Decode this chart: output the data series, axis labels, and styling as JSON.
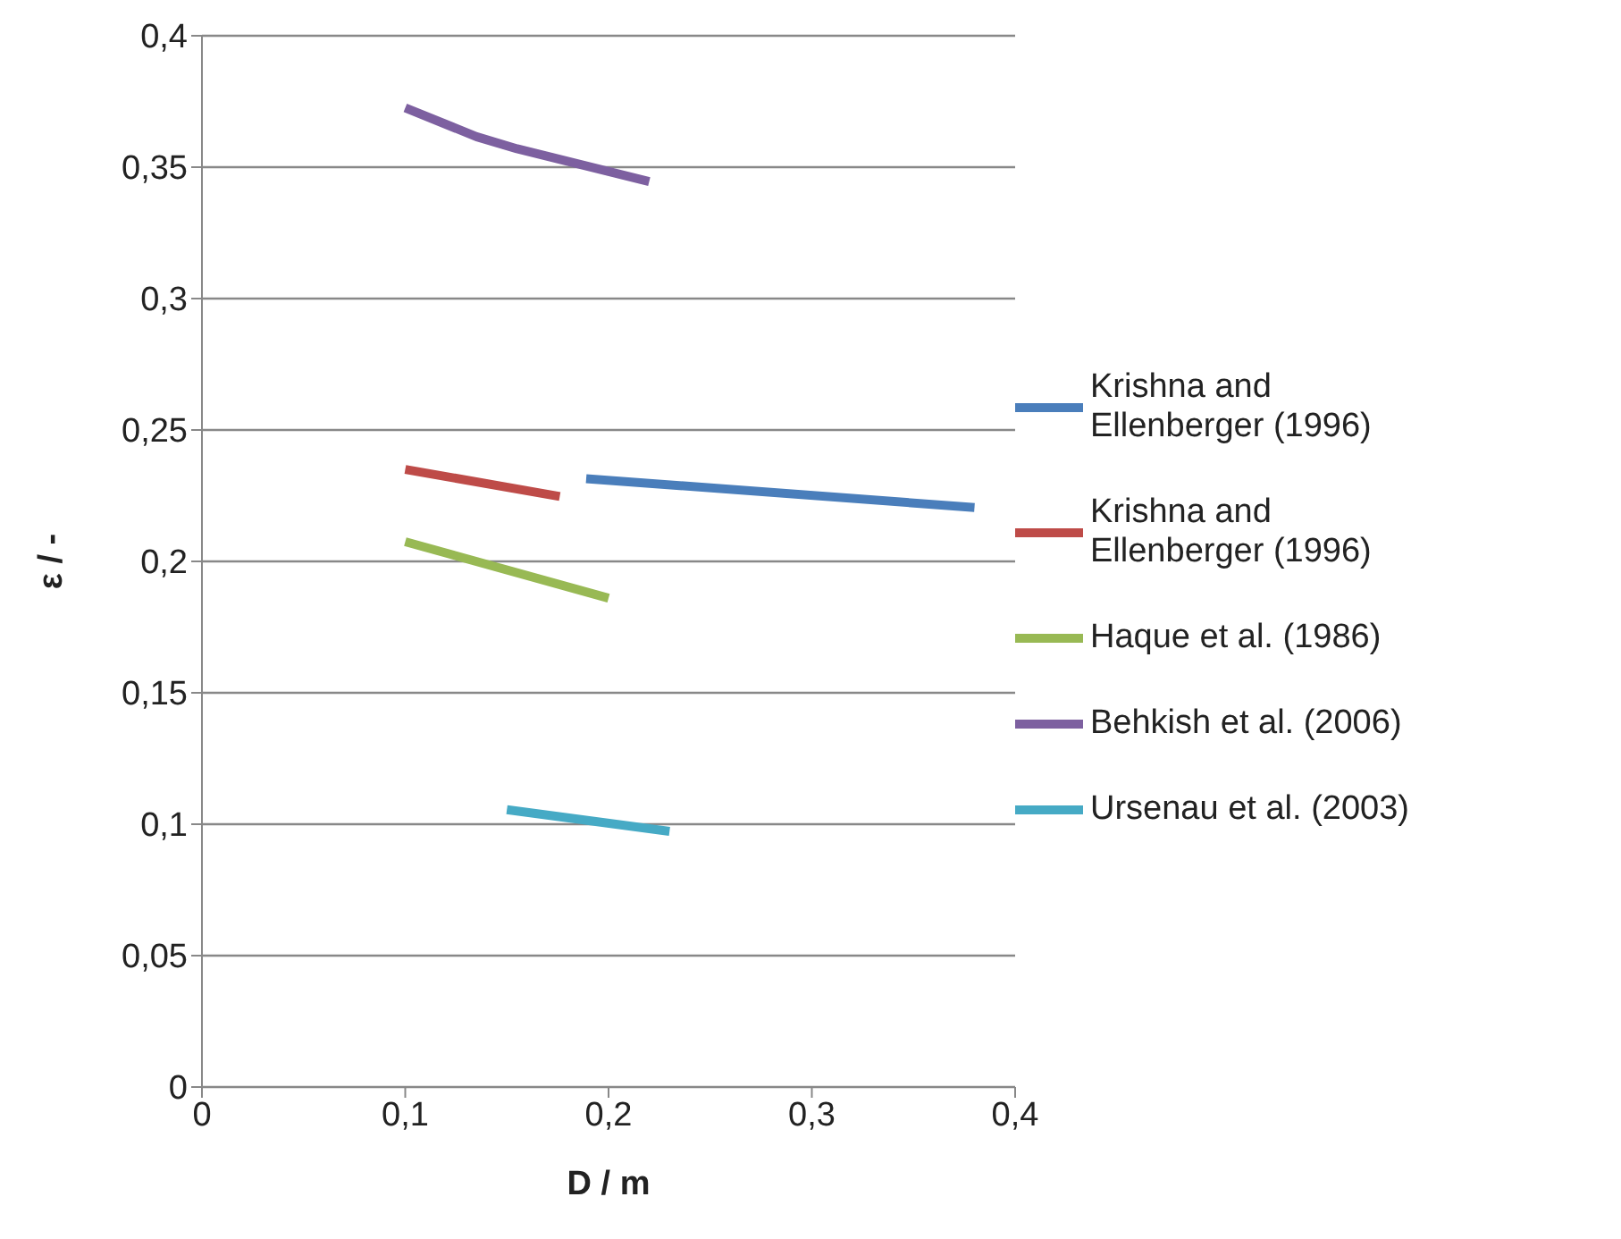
{
  "chart_data": {
    "type": "line",
    "xlabel": "D / m",
    "ylabel": "ε / -",
    "xlim": [
      0,
      0.4
    ],
    "ylim": [
      0,
      0.4
    ],
    "xticks": [
      0,
      {
        "value": 0.1,
        "label": "0,1"
      },
      {
        "value": 0.2,
        "label": "0,2"
      },
      {
        "value": 0.3,
        "label": "0,3"
      },
      {
        "value": 0.4,
        "label": "0,4"
      }
    ],
    "yticks": [
      0,
      {
        "value": 0.05,
        "label": "0,05"
      },
      {
        "value": 0.1,
        "label": "0,1"
      },
      {
        "value": 0.15,
        "label": "0,15"
      },
      {
        "value": 0.2,
        "label": "0,2"
      },
      {
        "value": 0.25,
        "label": "0,25"
      },
      {
        "value": 0.3,
        "label": "0,3"
      },
      {
        "value": 0.35,
        "label": "0,35"
      },
      {
        "value": 0.4,
        "label": "0,4"
      }
    ],
    "grid": "y",
    "legend": "right",
    "marker": "none",
    "line_style": "solid",
    "series": [
      {
        "name": "Krishna and Ellenberger (1996)",
        "color": "#4a7ebb",
        "x": [
          0.189,
          0.38
        ],
        "values": [
          0.2315,
          0.2205
        ]
      },
      {
        "name": "Krishna and Ellenberger (1996)",
        "color": "#be4b48",
        "x": [
          0.1,
          0.176
        ],
        "values": [
          0.235,
          0.2247
        ]
      },
      {
        "name": "Haque et al. (1986)",
        "color": "#98b954",
        "x": [
          0.1,
          0.2
        ],
        "values": [
          0.2075,
          0.186
        ]
      },
      {
        "name": "Behkish et al. (2006)",
        "color": "#7d60a0",
        "x": [
          0.1,
          0.135,
          0.155,
          0.22
        ],
        "values": [
          0.3726,
          0.3616,
          0.357,
          0.3445
        ]
      },
      {
        "name": "Ursenau et al. (2003)",
        "color": "#46aac5",
        "x": [
          0.15,
          0.23
        ],
        "values": [
          0.1055,
          0.0973
        ]
      }
    ]
  }
}
